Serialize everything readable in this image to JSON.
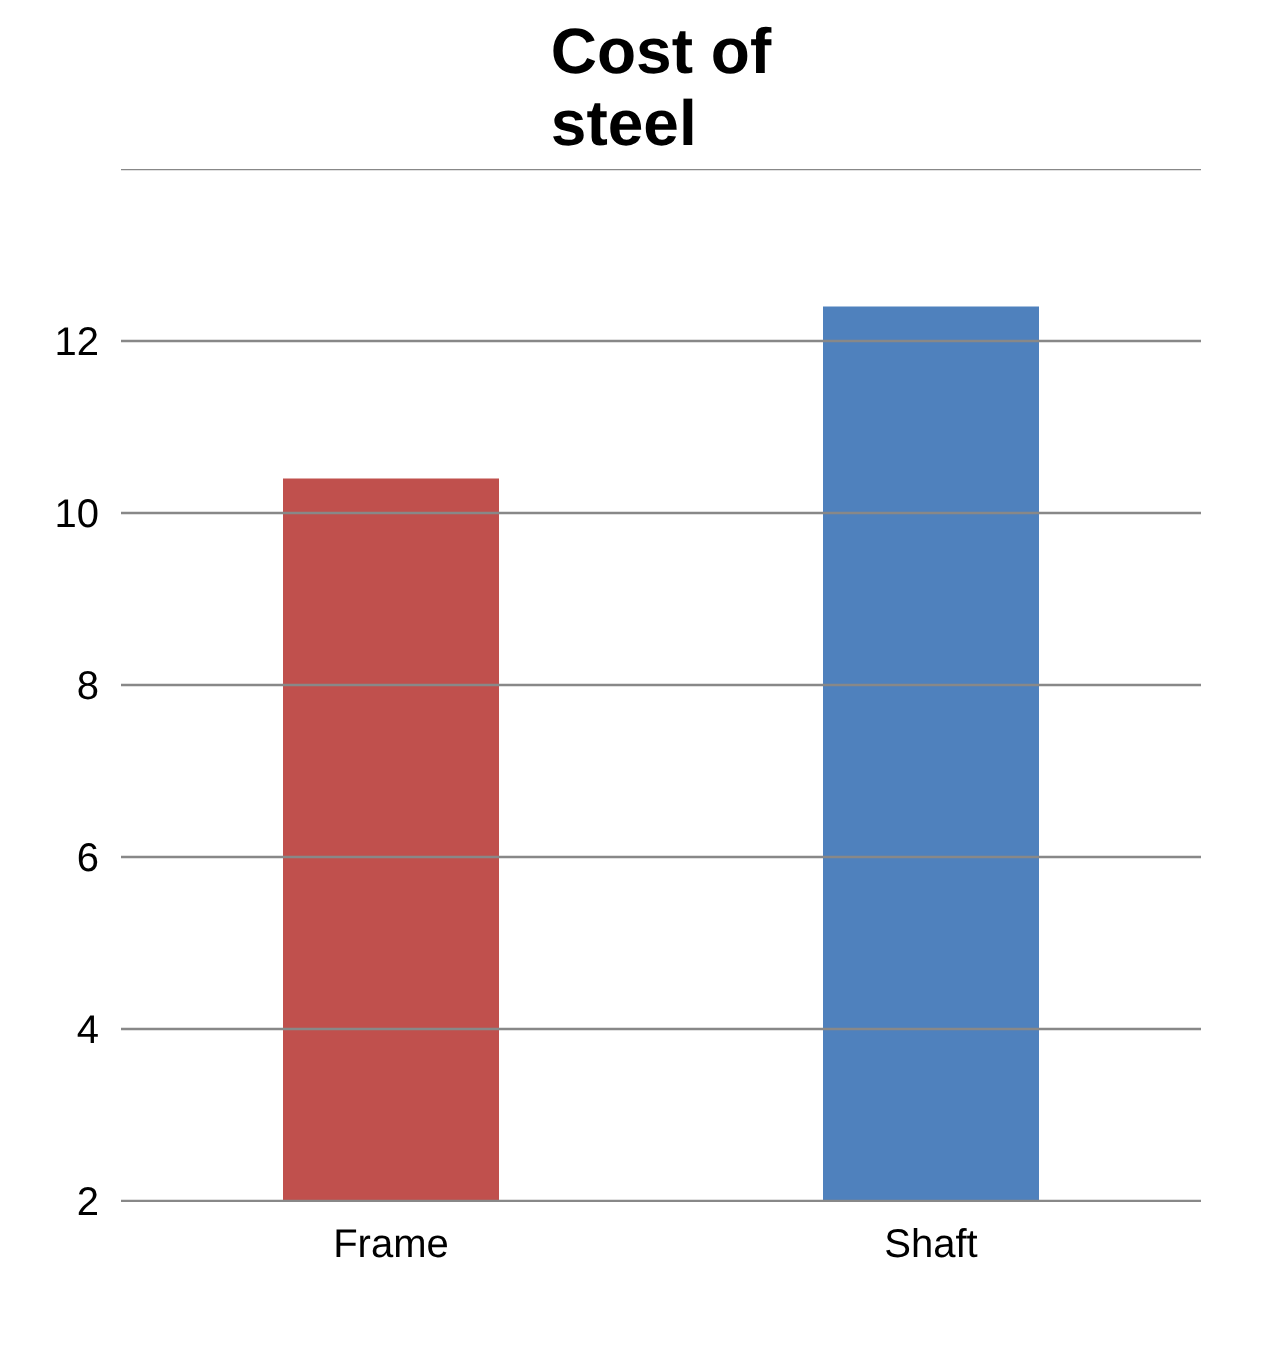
{
  "chart_data": {
    "type": "bar",
    "title": "Cost of\nsteel",
    "categories": [
      "Frame",
      "Shaft"
    ],
    "values": [
      10.4,
      12.4
    ],
    "colors": [
      "#c0504d",
      "#4f81bd"
    ],
    "ylim": [
      2,
      14
    ],
    "yticks": [
      2,
      4,
      6,
      8,
      10,
      12,
      {
        "value": 14,
        "label": null
      }
    ],
    "grid": "y"
  }
}
